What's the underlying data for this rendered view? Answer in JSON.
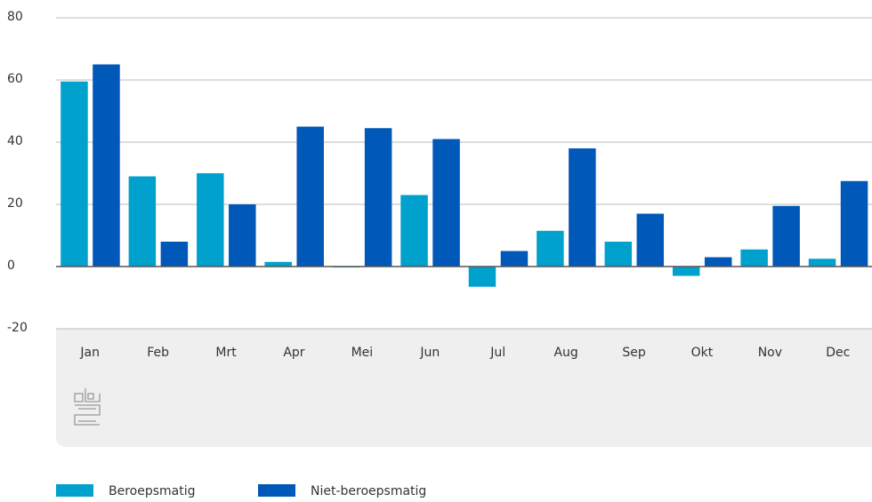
{
  "chart_data": {
    "type": "bar",
    "categories": [
      "Jan",
      "Feb",
      "Mrt",
      "Apr",
      "Mei",
      "Jun",
      "Jul",
      "Aug",
      "Sep",
      "Okt",
      "Nov",
      "Dec"
    ],
    "series": [
      {
        "name": "Beroepsmatig",
        "color": "#00a1cd",
        "values": [
          59.5,
          29,
          30,
          1.5,
          -0.3,
          23,
          -6.5,
          11.5,
          8,
          -3,
          5.5,
          2.5
        ]
      },
      {
        "name": "Niet-beroepsmatig",
        "color": "#0058b8",
        "values": [
          65,
          8,
          20,
          45,
          44.5,
          41,
          5,
          38,
          17,
          3,
          19.5,
          27.5
        ]
      }
    ],
    "ylim": [
      -20,
      80
    ],
    "yticks": [
      -20,
      0,
      20,
      40,
      60,
      80
    ],
    "grid": true
  }
}
